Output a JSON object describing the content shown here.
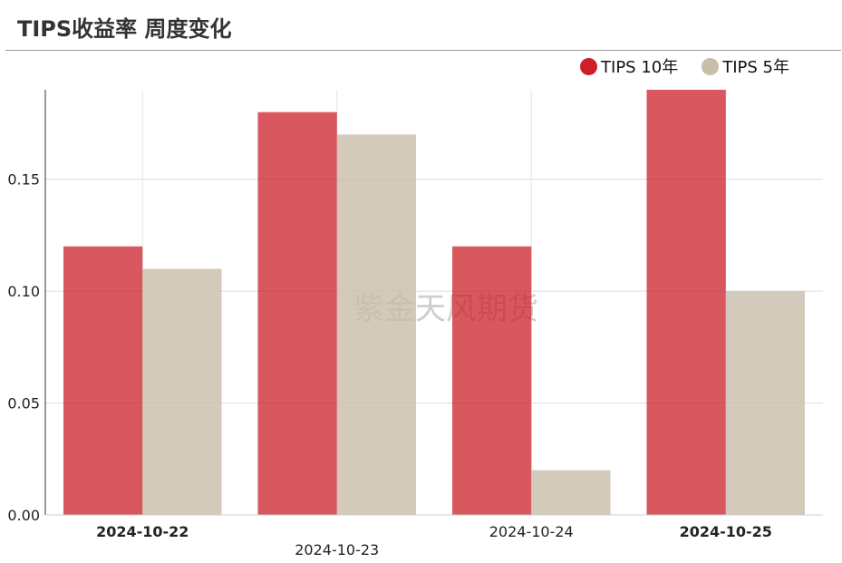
{
  "title": "TIPS收益率 周度变化",
  "watermark": "紫金天风期货",
  "colors": {
    "tips10": "#cc1f2a",
    "tips5": "#c9bdaa"
  },
  "legend": [
    {
      "label": "TIPS 10年",
      "color": "#cc1f2a"
    },
    {
      "label": "TIPS 5年",
      "color": "#c9bdaa"
    }
  ],
  "chart_data": {
    "type": "bar",
    "title": "TIPS收益率 周度变化",
    "categories": [
      "2024-10-22",
      "2024-10-23",
      "2024-10-24",
      "2024-10-25"
    ],
    "series": [
      {
        "name": "TIPS 10年",
        "values": [
          0.12,
          0.18,
          0.12,
          0.19
        ]
      },
      {
        "name": "TIPS 5年",
        "values": [
          0.11,
          0.17,
          0.02,
          0.1
        ]
      }
    ],
    "yticks": [
      "0.00",
      "0.05",
      "0.10",
      "0.15"
    ],
    "ylim": [
      0,
      0.19
    ],
    "grid": true,
    "legend_position": "top-right"
  }
}
